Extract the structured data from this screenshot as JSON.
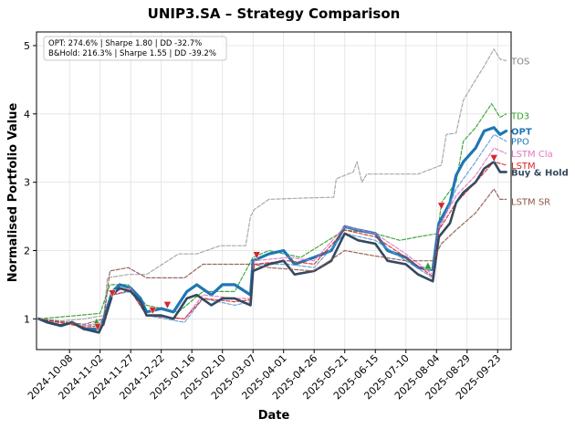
{
  "chart_data": {
    "type": "line",
    "title": "UNIP3.SA – Strategy Comparison",
    "xlabel": "Date",
    "ylabel": "Normalised Portfolio Value",
    "xlim": [
      "2024-09-11",
      "2025-10-04"
    ],
    "ylim": [
      0.55,
      5.2
    ],
    "x_ticks": [
      "2024-10-08",
      "2024-11-02",
      "2024-11-27",
      "2024-12-22",
      "2025-01-16",
      "2025-02-10",
      "2025-03-07",
      "2025-04-01",
      "2025-04-26",
      "2025-05-21",
      "2025-06-15",
      "2025-07-10",
      "2025-08-04",
      "2025-08-29",
      "2025-09-23"
    ],
    "y_ticks": [
      1,
      2,
      3,
      4,
      5
    ],
    "grid": true,
    "stats": {
      "opt": "OPT: 274.6% | Sharpe 1.80 | DD -32.7%",
      "bh": "B&Hold: 216.3% | Sharpe 1.55 | DD -39.2%"
    },
    "series": [
      {
        "name": "TOS",
        "color": "#a0a0a0",
        "style": "dashed",
        "width": 1.2,
        "points": [
          [
            "2024-09-13",
            1.0
          ],
          [
            "2024-10-01",
            0.97
          ],
          [
            "2024-10-20",
            1.0
          ],
          [
            "2024-11-05",
            1.05
          ],
          [
            "2024-11-08",
            1.6
          ],
          [
            "2024-11-25",
            1.65
          ],
          [
            "2024-12-10",
            1.65
          ],
          [
            "2025-01-05",
            1.95
          ],
          [
            "2025-01-20",
            1.95
          ],
          [
            "2025-02-08",
            2.07
          ],
          [
            "2025-03-01",
            2.07
          ],
          [
            "2025-03-05",
            2.5
          ],
          [
            "2025-03-08",
            2.6
          ],
          [
            "2025-03-20",
            2.75
          ],
          [
            "2025-04-20",
            2.77
          ],
          [
            "2025-05-12",
            2.78
          ],
          [
            "2025-05-14",
            3.05
          ],
          [
            "2025-05-28",
            3.15
          ],
          [
            "2025-05-31",
            3.3
          ],
          [
            "2025-06-04",
            3.0
          ],
          [
            "2025-06-08",
            3.12
          ],
          [
            "2025-07-20",
            3.12
          ],
          [
            "2025-08-08",
            3.25
          ],
          [
            "2025-08-12",
            3.7
          ],
          [
            "2025-08-20",
            3.72
          ],
          [
            "2025-08-26",
            4.2
          ],
          [
            "2025-09-05",
            4.5
          ],
          [
            "2025-09-12",
            4.7
          ],
          [
            "2025-09-20",
            4.95
          ],
          [
            "2025-09-25",
            4.8
          ],
          [
            "2025-09-30",
            4.78
          ]
        ]
      },
      {
        "name": "TD3",
        "color": "#2ca02c",
        "style": "dashed",
        "width": 1.2,
        "points": [
          [
            "2024-09-13",
            1.0
          ],
          [
            "2024-10-15",
            1.05
          ],
          [
            "2024-11-02",
            1.08
          ],
          [
            "2024-11-10",
            1.5
          ],
          [
            "2024-11-25",
            1.5
          ],
          [
            "2024-12-10",
            1.2
          ],
          [
            "2025-01-05",
            1.1
          ],
          [
            "2025-01-25",
            1.4
          ],
          [
            "2025-02-20",
            1.4
          ],
          [
            "2025-03-07",
            1.9
          ],
          [
            "2025-03-20",
            2.0
          ],
          [
            "2025-04-15",
            1.9
          ],
          [
            "2025-05-21",
            2.3
          ],
          [
            "2025-06-15",
            2.25
          ],
          [
            "2025-07-05",
            2.15
          ],
          [
            "2025-07-20",
            2.2
          ],
          [
            "2025-08-05",
            2.25
          ],
          [
            "2025-08-08",
            2.7
          ],
          [
            "2025-08-20",
            3.0
          ],
          [
            "2025-08-26",
            3.6
          ],
          [
            "2025-09-05",
            3.8
          ],
          [
            "2025-09-18",
            4.15
          ],
          [
            "2025-09-25",
            3.95
          ],
          [
            "2025-09-30",
            4.0
          ]
        ]
      },
      {
        "name": "OPT",
        "color": "#1f77b4",
        "style": "solid",
        "width": 3.2,
        "bold": true,
        "points": [
          [
            "2024-09-13",
            1.0
          ],
          [
            "2024-09-20",
            0.95
          ],
          [
            "2024-10-01",
            0.9
          ],
          [
            "2024-10-10",
            0.95
          ],
          [
            "2024-10-20",
            0.85
          ],
          [
            "2024-11-01",
            0.85
          ],
          [
            "2024-11-05",
            1.0
          ],
          [
            "2024-11-12",
            1.4
          ],
          [
            "2024-11-18",
            1.5
          ],
          [
            "2024-11-27",
            1.45
          ],
          [
            "2024-12-05",
            1.3
          ],
          [
            "2024-12-10",
            1.1
          ],
          [
            "2024-12-22",
            1.15
          ],
          [
            "2025-01-01",
            1.1
          ],
          [
            "2025-01-12",
            1.4
          ],
          [
            "2025-01-20",
            1.5
          ],
          [
            "2025-02-01",
            1.35
          ],
          [
            "2025-02-10",
            1.5
          ],
          [
            "2025-02-20",
            1.5
          ],
          [
            "2025-03-05",
            1.35
          ],
          [
            "2025-03-07",
            1.85
          ],
          [
            "2025-03-20",
            1.95
          ],
          [
            "2025-04-01",
            2.0
          ],
          [
            "2025-04-10",
            1.8
          ],
          [
            "2025-04-26",
            1.9
          ],
          [
            "2025-05-10",
            2.0
          ],
          [
            "2025-05-21",
            2.35
          ],
          [
            "2025-06-01",
            2.3
          ],
          [
            "2025-06-15",
            2.25
          ],
          [
            "2025-06-25",
            2.0
          ],
          [
            "2025-07-10",
            1.9
          ],
          [
            "2025-07-20",
            1.75
          ],
          [
            "2025-08-01",
            1.72
          ],
          [
            "2025-08-06",
            2.4
          ],
          [
            "2025-08-15",
            2.7
          ],
          [
            "2025-08-20",
            3.1
          ],
          [
            "2025-08-26",
            3.3
          ],
          [
            "2025-09-05",
            3.5
          ],
          [
            "2025-09-12",
            3.75
          ],
          [
            "2025-09-20",
            3.8
          ],
          [
            "2025-09-25",
            3.7
          ],
          [
            "2025-09-30",
            3.75
          ]
        ]
      },
      {
        "name": "PPO",
        "color": "#5b9bd5",
        "style": "dashed",
        "width": 1.2,
        "points": [
          [
            "2024-09-13",
            1.0
          ],
          [
            "2024-10-20",
            0.9
          ],
          [
            "2024-11-05",
            0.95
          ],
          [
            "2024-11-12",
            1.35
          ],
          [
            "2024-11-27",
            1.4
          ],
          [
            "2024-12-10",
            1.05
          ],
          [
            "2025-01-10",
            0.95
          ],
          [
            "2025-01-25",
            1.3
          ],
          [
            "2025-02-20",
            1.2
          ],
          [
            "2025-03-05",
            1.25
          ],
          [
            "2025-03-08",
            1.8
          ],
          [
            "2025-04-05",
            1.8
          ],
          [
            "2025-04-26",
            1.75
          ],
          [
            "2025-05-21",
            2.25
          ],
          [
            "2025-06-15",
            2.15
          ],
          [
            "2025-07-10",
            1.85
          ],
          [
            "2025-08-01",
            1.6
          ],
          [
            "2025-08-06",
            2.3
          ],
          [
            "2025-08-20",
            2.9
          ],
          [
            "2025-09-05",
            3.3
          ],
          [
            "2025-09-20",
            3.7
          ],
          [
            "2025-09-30",
            3.6
          ]
        ]
      },
      {
        "name": "LSTM Cla",
        "color": "#e377c2",
        "style": "dashed",
        "width": 1.2,
        "points": [
          [
            "2024-09-13",
            1.0
          ],
          [
            "2024-10-20",
            0.9
          ],
          [
            "2024-11-05",
            0.92
          ],
          [
            "2024-11-12",
            1.4
          ],
          [
            "2024-11-27",
            1.45
          ],
          [
            "2024-12-10",
            1.05
          ],
          [
            "2025-01-10",
            1.0
          ],
          [
            "2025-01-25",
            1.35
          ],
          [
            "2025-02-20",
            1.3
          ],
          [
            "2025-03-05",
            1.3
          ],
          [
            "2025-03-08",
            1.85
          ],
          [
            "2025-04-05",
            1.9
          ],
          [
            "2025-04-26",
            1.85
          ],
          [
            "2025-05-21",
            2.35
          ],
          [
            "2025-06-15",
            2.25
          ],
          [
            "2025-07-10",
            1.95
          ],
          [
            "2025-08-01",
            1.65
          ],
          [
            "2025-08-06",
            2.35
          ],
          [
            "2025-08-20",
            2.8
          ],
          [
            "2025-09-05",
            3.1
          ],
          [
            "2025-09-20",
            3.5
          ],
          [
            "2025-09-30",
            3.42
          ]
        ]
      },
      {
        "name": "LSTM",
        "color": "#d62728",
        "style": "dashed",
        "width": 1.2,
        "points": [
          [
            "2024-09-13",
            1.0
          ],
          [
            "2024-10-20",
            0.88
          ],
          [
            "2024-11-05",
            0.9
          ],
          [
            "2024-11-12",
            1.35
          ],
          [
            "2024-11-27",
            1.42
          ],
          [
            "2024-12-10",
            1.05
          ],
          [
            "2025-01-10",
            1.0
          ],
          [
            "2025-01-25",
            1.3
          ],
          [
            "2025-02-20",
            1.25
          ],
          [
            "2025-03-05",
            1.28
          ],
          [
            "2025-03-08",
            1.8
          ],
          [
            "2025-04-05",
            1.85
          ],
          [
            "2025-04-26",
            1.8
          ],
          [
            "2025-05-21",
            2.3
          ],
          [
            "2025-06-15",
            2.2
          ],
          [
            "2025-07-10",
            1.9
          ],
          [
            "2025-08-01",
            1.62
          ],
          [
            "2025-08-06",
            2.3
          ],
          [
            "2025-08-20",
            2.7
          ],
          [
            "2025-09-05",
            3.0
          ],
          [
            "2025-09-20",
            3.3
          ],
          [
            "2025-09-30",
            3.25
          ]
        ]
      },
      {
        "name": "Buy & Hold",
        "color": "#34495e",
        "style": "solid",
        "width": 2.6,
        "bold": true,
        "points": [
          [
            "2024-09-13",
            1.0
          ],
          [
            "2024-09-20",
            0.95
          ],
          [
            "2024-10-01",
            0.9
          ],
          [
            "2024-10-10",
            0.95
          ],
          [
            "2024-10-20",
            0.85
          ],
          [
            "2024-11-01",
            0.8
          ],
          [
            "2024-11-05",
            0.95
          ],
          [
            "2024-11-12",
            1.35
          ],
          [
            "2024-11-18",
            1.45
          ],
          [
            "2024-11-27",
            1.4
          ],
          [
            "2024-12-05",
            1.25
          ],
          [
            "2024-12-10",
            1.05
          ],
          [
            "2024-12-22",
            1.05
          ],
          [
            "2025-01-01",
            1.0
          ],
          [
            "2025-01-12",
            1.3
          ],
          [
            "2025-01-20",
            1.35
          ],
          [
            "2025-02-01",
            1.2
          ],
          [
            "2025-02-10",
            1.3
          ],
          [
            "2025-02-20",
            1.3
          ],
          [
            "2025-03-05",
            1.2
          ],
          [
            "2025-03-07",
            1.7
          ],
          [
            "2025-03-20",
            1.8
          ],
          [
            "2025-04-01",
            1.85
          ],
          [
            "2025-04-10",
            1.65
          ],
          [
            "2025-04-26",
            1.7
          ],
          [
            "2025-05-10",
            1.85
          ],
          [
            "2025-05-21",
            2.25
          ],
          [
            "2025-06-01",
            2.15
          ],
          [
            "2025-06-15",
            2.1
          ],
          [
            "2025-06-25",
            1.85
          ],
          [
            "2025-07-10",
            1.8
          ],
          [
            "2025-07-20",
            1.65
          ],
          [
            "2025-08-01",
            1.55
          ],
          [
            "2025-08-06",
            2.2
          ],
          [
            "2025-08-15",
            2.4
          ],
          [
            "2025-08-20",
            2.7
          ],
          [
            "2025-08-26",
            2.85
          ],
          [
            "2025-09-05",
            3.0
          ],
          [
            "2025-09-12",
            3.2
          ],
          [
            "2025-09-20",
            3.3
          ],
          [
            "2025-09-25",
            3.15
          ],
          [
            "2025-09-30",
            3.15
          ]
        ]
      },
      {
        "name": "LSTM SR",
        "color": "#8c564b",
        "style": "dashed",
        "width": 1.2,
        "points": [
          [
            "2024-09-13",
            1.0
          ],
          [
            "2024-10-20",
            0.92
          ],
          [
            "2024-11-05",
            1.0
          ],
          [
            "2024-11-10",
            1.7
          ],
          [
            "2024-11-25",
            1.75
          ],
          [
            "2024-12-10",
            1.6
          ],
          [
            "2025-01-10",
            1.6
          ],
          [
            "2025-01-25",
            1.8
          ],
          [
            "2025-02-20",
            1.8
          ],
          [
            "2025-03-07",
            1.8
          ],
          [
            "2025-03-20",
            1.75
          ],
          [
            "2025-04-26",
            1.7
          ],
          [
            "2025-05-21",
            2.0
          ],
          [
            "2025-06-15",
            1.92
          ],
          [
            "2025-07-10",
            1.85
          ],
          [
            "2025-08-01",
            1.85
          ],
          [
            "2025-08-08",
            2.1
          ],
          [
            "2025-08-20",
            2.3
          ],
          [
            "2025-09-05",
            2.55
          ],
          [
            "2025-09-20",
            2.9
          ],
          [
            "2025-09-25",
            2.75
          ],
          [
            "2025-09-30",
            2.75
          ]
        ]
      }
    ],
    "markers": [
      {
        "date": "2024-10-30",
        "value": 0.96,
        "type": "buy",
        "color": "#2ca02c"
      },
      {
        "date": "2024-10-31",
        "value": 0.88,
        "type": "sell",
        "color": "#d62728"
      },
      {
        "date": "2024-11-12",
        "value": 1.37,
        "type": "sell",
        "color": "#d62728"
      },
      {
        "date": "2024-12-15",
        "value": 1.12,
        "type": "sell",
        "color": "#d62728"
      },
      {
        "date": "2024-12-27",
        "value": 1.2,
        "type": "sell",
        "color": "#d62728"
      },
      {
        "date": "2025-03-10",
        "value": 1.93,
        "type": "sell",
        "color": "#d62728"
      },
      {
        "date": "2025-07-28",
        "value": 1.78,
        "type": "buy",
        "color": "#2ca02c"
      },
      {
        "date": "2025-08-08",
        "value": 2.65,
        "type": "sell",
        "color": "#d62728"
      },
      {
        "date": "2025-09-20",
        "value": 3.35,
        "type": "sell",
        "color": "#d62728"
      }
    ],
    "end_labels": [
      {
        "text": "TOS",
        "value": 4.78,
        "color": "#808080",
        "bold": false
      },
      {
        "text": "TD3",
        "value": 3.98,
        "color": "#2ca02c",
        "bold": false
      },
      {
        "text": "OPT",
        "value": 3.75,
        "color": "#1f77b4",
        "bold": true
      },
      {
        "text": "PPO",
        "value": 3.6,
        "color": "#1f77b4",
        "bold": false
      },
      {
        "text": "LSTM Cla",
        "value": 3.42,
        "color": "#e377c2",
        "bold": false
      },
      {
        "text": "LSTM",
        "value": 3.25,
        "color": "#d62728",
        "bold": false
      },
      {
        "text": "Buy & Hold",
        "value": 3.15,
        "color": "#34495e",
        "bold": true
      },
      {
        "text": "LSTM SR",
        "value": 2.72,
        "color": "#8c564b",
        "bold": false
      }
    ]
  }
}
